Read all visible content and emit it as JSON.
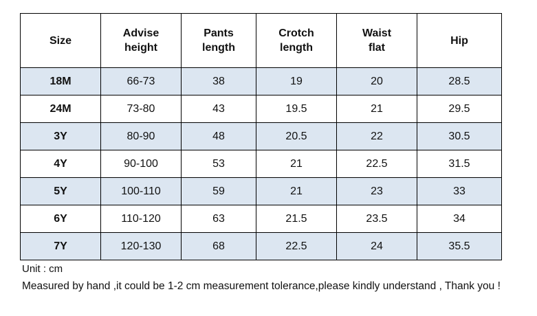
{
  "table": {
    "headers": [
      "Size",
      "Advise\nheight",
      "Pants\nlength",
      "Crotch\nlength",
      "Waist\nflat",
      "Hip"
    ],
    "rows": [
      [
        "18M",
        "66-73",
        "38",
        "19",
        "20",
        "28.5"
      ],
      [
        "24M",
        "73-80",
        "43",
        "19.5",
        "21",
        "29.5"
      ],
      [
        "3Y",
        "80-90",
        "48",
        "20.5",
        "22",
        "30.5"
      ],
      [
        "4Y",
        "90-100",
        "53",
        "21",
        "22.5",
        "31.5"
      ],
      [
        "5Y",
        "100-110",
        "59",
        "21",
        "23",
        "33"
      ],
      [
        "6Y",
        "110-120",
        "63",
        "21.5",
        "23.5",
        "34"
      ],
      [
        "7Y",
        "120-130",
        "68",
        "22.5",
        "24",
        "35.5"
      ]
    ]
  },
  "notes": {
    "unit": "Unit : cm",
    "tolerance": "Measured by hand ,it could be 1-2 cm measurement tolerance,please kindly understand , Thank you !"
  },
  "colors": {
    "shaded_row": "#dce6f1",
    "border": "#000000"
  }
}
